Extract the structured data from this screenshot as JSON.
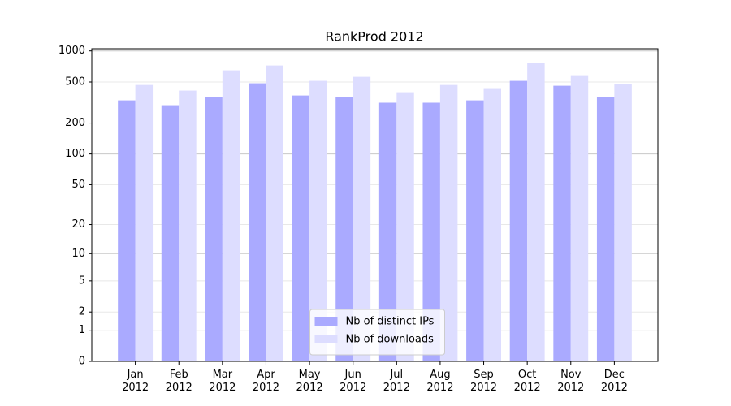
{
  "chart_data": {
    "type": "bar",
    "title": "RankProd 2012",
    "categories": [
      "Jan\n2012",
      "Feb\n2012",
      "Mar\n2012",
      "Apr\n2012",
      "May\n2012",
      "Jun\n2012",
      "Jul\n2012",
      "Aug\n2012",
      "Sep\n2012",
      "Oct\n2012",
      "Nov\n2012",
      "Dec\n2012"
    ],
    "series": [
      {
        "name": "Nb of distinct IPs",
        "color": "#aaaaff",
        "values": [
          332,
          298,
          357,
          486,
          370,
          357,
          315,
          315,
          332,
          513,
          460,
          357
        ]
      },
      {
        "name": "Nb of downloads",
        "color": "#ddddff",
        "values": [
          468,
          413,
          649,
          723,
          513,
          561,
          398,
          468,
          436,
          763,
          582,
          477
        ]
      }
    ],
    "yscale": "log1p",
    "ylim": [
      0,
      1050
    ],
    "yticks": [
      0,
      1,
      2,
      5,
      10,
      20,
      50,
      100,
      200,
      500,
      1000
    ],
    "grid": true,
    "legend": "lower center"
  }
}
